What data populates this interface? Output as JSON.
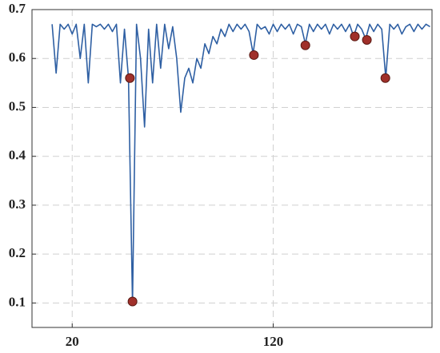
{
  "chart_data": {
    "type": "line",
    "xlim": [
      0,
      199
    ],
    "ylim": [
      0.05,
      0.7
    ],
    "xticks": [
      20,
      120
    ],
    "yticks": [
      0.1,
      0.2,
      0.3,
      0.4,
      0.5,
      0.6,
      0.7
    ],
    "grid": true,
    "series": [
      {
        "style": "line",
        "color": "#2e5fa3",
        "x": [
          10,
          12,
          14,
          16,
          18,
          20,
          22,
          24,
          26,
          28,
          30,
          32,
          34,
          36,
          38,
          40,
          42,
          44,
          46,
          48,
          50,
          52,
          54,
          56,
          58,
          60,
          62,
          64,
          66,
          68,
          70,
          72,
          74,
          76,
          78,
          80,
          82,
          84,
          86,
          88,
          90,
          92,
          94,
          96,
          98,
          100,
          102,
          104,
          106,
          108,
          110,
          112,
          114,
          116,
          118,
          120,
          122,
          124,
          126,
          128,
          130,
          132,
          134,
          136,
          138,
          140,
          142,
          144,
          146,
          148,
          150,
          152,
          154,
          156,
          158,
          160,
          162,
          164,
          166,
          168,
          170,
          172,
          174,
          176,
          178,
          180,
          182,
          184,
          186,
          188,
          190,
          192,
          194,
          196,
          198
        ],
        "values": [
          0.67,
          0.57,
          0.67,
          0.66,
          0.67,
          0.65,
          0.67,
          0.6,
          0.67,
          0.55,
          0.67,
          0.665,
          0.67,
          0.66,
          0.67,
          0.655,
          0.67,
          0.55,
          0.66,
          0.56,
          0.1,
          0.67,
          0.6,
          0.46,
          0.66,
          0.55,
          0.67,
          0.58,
          0.67,
          0.62,
          0.665,
          0.6,
          0.49,
          0.56,
          0.58,
          0.55,
          0.6,
          0.58,
          0.63,
          0.61,
          0.645,
          0.63,
          0.66,
          0.645,
          0.67,
          0.655,
          0.67,
          0.66,
          0.67,
          0.655,
          0.61,
          0.67,
          0.66,
          0.665,
          0.65,
          0.67,
          0.655,
          0.67,
          0.66,
          0.67,
          0.65,
          0.67,
          0.665,
          0.63,
          0.67,
          0.655,
          0.67,
          0.66,
          0.67,
          0.65,
          0.67,
          0.66,
          0.67,
          0.655,
          0.67,
          0.645,
          0.67,
          0.66,
          0.64,
          0.67,
          0.655,
          0.67,
          0.66,
          0.56,
          0.67,
          0.66,
          0.67,
          0.65,
          0.665,
          0.67,
          0.655,
          0.67,
          0.66,
          0.67,
          0.665
        ]
      },
      {
        "style": "marker",
        "color": "#a0302a",
        "x": [
          48.7,
          50,
          110.4,
          136,
          160.6,
          166.6,
          175.8
        ],
        "values": [
          0.56,
          0.103,
          0.607,
          0.627,
          0.645,
          0.638,
          0.56
        ]
      }
    ]
  }
}
